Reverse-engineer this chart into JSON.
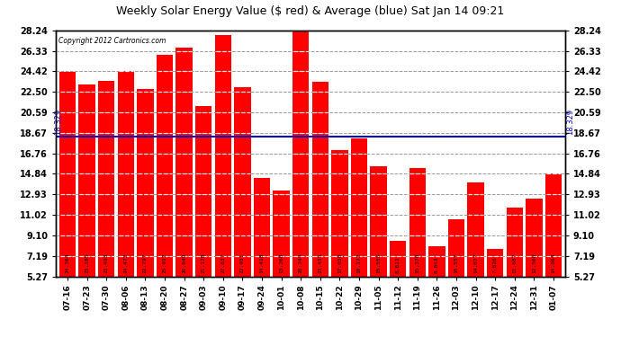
{
  "title": "Weekly Solar Energy Value ($ red) & Average (blue) Sat Jan 14 09:21",
  "copyright": "Copyright 2012 Cartronics.com",
  "categories": [
    "07-16",
    "07-23",
    "07-30",
    "08-06",
    "08-13",
    "08-20",
    "08-27",
    "09-03",
    "09-10",
    "09-17",
    "09-24",
    "10-01",
    "10-08",
    "10-15",
    "10-22",
    "10-29",
    "11-05",
    "11-12",
    "11-19",
    "11-26",
    "12-03",
    "12-10",
    "12-17",
    "12-24",
    "12-31",
    "01-07"
  ],
  "values": [
    24.364,
    23.185,
    23.493,
    24.472,
    22.797,
    25.912,
    26.649,
    21.178,
    27.837,
    22.931,
    14.418,
    13.268,
    28.244,
    23.435,
    17.03,
    18.172,
    15.555,
    8.611,
    15.378,
    8.043,
    10.557,
    14.077,
    7.826,
    11.687,
    12.56,
    14.864
  ],
  "average": 18.329,
  "average_label": "18.329",
  "bar_color": "#FF0000",
  "avg_line_color": "#0000CC",
  "background_color": "#FFFFFF",
  "plot_bg_color": "#FFFFFF",
  "grid_color": "#AAAAAA",
  "yticks": [
    5.27,
    7.19,
    9.1,
    11.02,
    12.93,
    14.84,
    16.76,
    18.67,
    20.59,
    22.5,
    24.42,
    26.33,
    28.24
  ],
  "ylim_min": 5.27,
  "ylim_max": 28.24
}
